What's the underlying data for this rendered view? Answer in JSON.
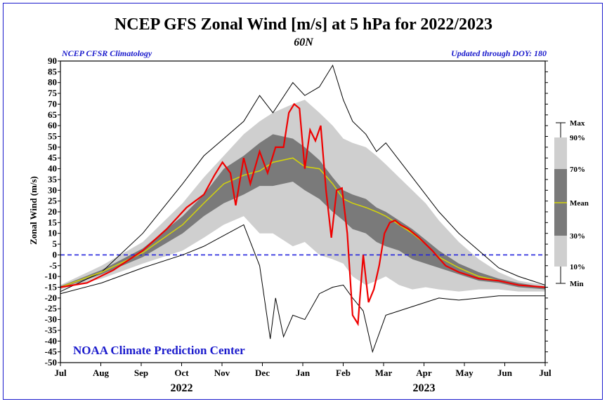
{
  "header": {
    "title": "NCEP GFS Zonal Wind [m/s] at 5 hPa for 2022/2023",
    "subtitle": "60N",
    "left_note": "NCEP CFSR Climatology",
    "right_note": "Updated through DOY: 180"
  },
  "credit": "NOAA Climate Prediction Center",
  "colors": {
    "band_outer": "#cfcfcf",
    "band_inner": "#7a7a7a",
    "mean": "#d4d40a",
    "current": "#ee0000",
    "extreme": "#000000",
    "zero_line": "#2222dd",
    "frame": "#1a1acc"
  },
  "chart_data": {
    "type": "line",
    "ylabel": "Zonal Wind (m/s)",
    "ylim": [
      -50,
      90
    ],
    "yticks": [
      -50,
      -45,
      -40,
      -35,
      -30,
      -25,
      -20,
      -15,
      -10,
      -5,
      0,
      5,
      10,
      15,
      20,
      25,
      30,
      35,
      40,
      45,
      50,
      55,
      60,
      65,
      70,
      75,
      80,
      85,
      90
    ],
    "months": [
      "Jul",
      "Aug",
      "Sep",
      "Oct",
      "Nov",
      "Dec",
      "Jan",
      "Feb",
      "Mar",
      "Apr",
      "May",
      "Jun",
      "Jul"
    ],
    "years": [
      "2022",
      "2023"
    ],
    "x_unit": "day index from Jul 1",
    "xlim": [
      0,
      365
    ],
    "zero_line": 0,
    "legend": [
      "Max",
      "90%",
      "70%",
      "Mean",
      "30%",
      "10%",
      "Min"
    ],
    "series": [
      {
        "name": "Max",
        "x": [
          0,
          31,
          62,
          92,
          108,
          123,
          138,
          150,
          160,
          175,
          184,
          195,
          205,
          213,
          220,
          230,
          238,
          245,
          255,
          265,
          275,
          285,
          300,
          315,
          330,
          345,
          365
        ],
        "y": [
          -17,
          -8,
          10,
          33,
          46,
          54,
          62,
          74,
          66,
          80,
          74,
          78,
          88,
          72,
          62,
          56,
          48,
          52,
          44,
          36,
          28,
          20,
          10,
          2,
          -6,
          -10,
          -14
        ]
      },
      {
        "name": "90%",
        "x": [
          0,
          31,
          62,
          92,
          108,
          123,
          138,
          150,
          160,
          175,
          184,
          195,
          205,
          213,
          220,
          230,
          238,
          245,
          255,
          265,
          275,
          285,
          300,
          315,
          330,
          345,
          365
        ],
        "y": [
          -14,
          -5,
          6,
          24,
          36,
          46,
          56,
          62,
          66,
          70,
          72,
          66,
          60,
          54,
          52,
          50,
          46,
          42,
          36,
          30,
          24,
          16,
          6,
          -2,
          -8,
          -12,
          -14
        ]
      },
      {
        "name": "70%",
        "x": [
          0,
          31,
          62,
          92,
          108,
          123,
          138,
          150,
          160,
          175,
          184,
          195,
          205,
          213,
          220,
          230,
          238,
          245,
          255,
          265,
          275,
          285,
          300,
          315,
          330,
          345,
          365
        ],
        "y": [
          -14.5,
          -7,
          3,
          18,
          28,
          40,
          46,
          52,
          56,
          54,
          50,
          44,
          36,
          30,
          28,
          26,
          22,
          20,
          16,
          12,
          7,
          2,
          -4,
          -8,
          -11,
          -13,
          -15
        ]
      },
      {
        "name": "Mean",
        "x": [
          0,
          31,
          62,
          92,
          108,
          123,
          138,
          150,
          160,
          175,
          184,
          195,
          205,
          213,
          220,
          230,
          238,
          245,
          255,
          265,
          275,
          285,
          300,
          315,
          330,
          345,
          365
        ],
        "y": [
          -15,
          -8,
          1,
          14,
          24,
          33,
          37,
          39,
          43,
          45,
          41,
          40,
          33,
          26,
          24,
          22,
          20,
          18,
          14,
          10,
          5,
          -1,
          -6,
          -10,
          -12,
          -14,
          -15
        ]
      },
      {
        "name": "30%",
        "x": [
          0,
          31,
          62,
          92,
          108,
          123,
          138,
          150,
          160,
          175,
          184,
          195,
          205,
          213,
          220,
          230,
          238,
          245,
          255,
          265,
          275,
          285,
          300,
          315,
          330,
          345,
          365
        ],
        "y": [
          -15.5,
          -9,
          -1,
          10,
          18,
          24,
          28,
          32,
          32,
          34,
          30,
          26,
          20,
          16,
          12,
          10,
          6,
          4,
          2,
          -2,
          -4,
          -6,
          -9,
          -12,
          -13,
          -15,
          -16
        ]
      },
      {
        "name": "10%",
        "x": [
          0,
          31,
          62,
          92,
          108,
          123,
          138,
          150,
          160,
          175,
          184,
          195,
          205,
          213,
          220,
          230,
          238,
          245,
          255,
          265,
          275,
          285,
          300,
          315,
          330,
          345,
          365
        ],
        "y": [
          -16,
          -11,
          -4,
          2,
          8,
          14,
          18,
          10,
          10,
          4,
          6,
          0,
          -2,
          -4,
          -10,
          -14,
          -12,
          -10,
          -14,
          -16,
          -15,
          -16,
          -17,
          -16,
          -16,
          -17,
          -17
        ]
      },
      {
        "name": "Min",
        "x": [
          0,
          31,
          62,
          92,
          108,
          123,
          138,
          150,
          158,
          162,
          168,
          175,
          184,
          195,
          205,
          213,
          220,
          228,
          235,
          245,
          255,
          265,
          275,
          285,
          300,
          315,
          330,
          345,
          365
        ],
        "y": [
          -18,
          -13,
          -6,
          0,
          4,
          9,
          14,
          -5,
          -39,
          -20,
          -38,
          -28,
          -30,
          -18,
          -15,
          -14,
          -20,
          -26,
          -45,
          -28,
          -26,
          -24,
          -22,
          -20,
          -21,
          -20,
          -19,
          -19,
          -19
        ]
      },
      {
        "name": "2022/2023",
        "x": [
          0,
          20,
          40,
          62,
          80,
          95,
          108,
          116,
          122,
          128,
          132,
          138,
          143,
          150,
          156,
          162,
          168,
          172,
          176,
          180,
          184,
          188,
          192,
          196,
          200,
          204,
          208,
          212,
          216,
          220,
          224,
          228,
          232,
          236,
          240,
          244,
          248,
          252,
          256,
          262,
          270,
          280,
          290,
          300,
          315,
          330,
          345,
          365
        ],
        "y": [
          -15,
          -13,
          -7,
          2,
          12,
          22,
          28,
          37,
          43,
          38,
          23,
          45,
          33,
          48,
          38,
          50,
          50,
          66,
          70,
          68,
          40,
          58,
          53,
          60,
          30,
          8,
          30,
          31,
          10,
          -28,
          -32,
          0,
          -22,
          -16,
          -5,
          10,
          15,
          16,
          14,
          12,
          8,
          2,
          -5,
          -8,
          -11,
          -12,
          -14,
          -15
        ]
      }
    ]
  }
}
